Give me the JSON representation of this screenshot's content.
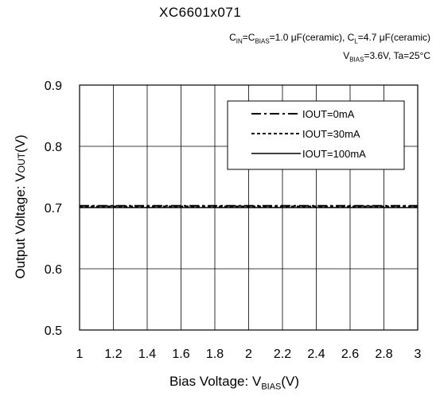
{
  "chart_data": {
    "type": "line",
    "title": "XC6601x071",
    "conditions": {
      "line1_part1": "C",
      "line1_sub1": "IN",
      "line1_part2": "=C",
      "line1_sub2": "BIAS",
      "line1_part3": "=1.0 μF(ceramic), C",
      "line1_sub3": "L",
      "line1_part4": "=4.7 μF(ceramic)",
      "line2_part1": "V",
      "line2_sub1": "BIAS",
      "line2_part2": "=3.6V, Ta=25°C"
    },
    "xlabel_main": "Bias Voltage: V",
    "xlabel_sub": "BIAS",
    "xlabel_tail": "(V)",
    "ylabel_main": "Output Voltage: V",
    "ylabel_sub": "OUT",
    "ylabel_tail": "(V)",
    "xlim": [
      1,
      3
    ],
    "ylim": [
      0.5,
      0.9
    ],
    "xticks": [
      "1",
      "1.2",
      "1.4",
      "1.6",
      "1.8",
      "2",
      "2.2",
      "2.4",
      "2.6",
      "2.8",
      "3"
    ],
    "yticks": [
      "0.5",
      "0.6",
      "0.7",
      "0.8",
      "0.9"
    ],
    "grid": true,
    "legend_position": "top-right",
    "series": [
      {
        "name": "IOUT=0mA",
        "style": "dash-dot",
        "x": [
          1,
          3
        ],
        "y": [
          0.703,
          0.703
        ]
      },
      {
        "name": "IOUT=30mA",
        "style": "dotted",
        "x": [
          1,
          3
        ],
        "y": [
          0.702,
          0.702
        ]
      },
      {
        "name": "IOUT=100mA",
        "style": "solid",
        "x": [
          1,
          3
        ],
        "y": [
          0.7,
          0.7
        ]
      }
    ]
  }
}
